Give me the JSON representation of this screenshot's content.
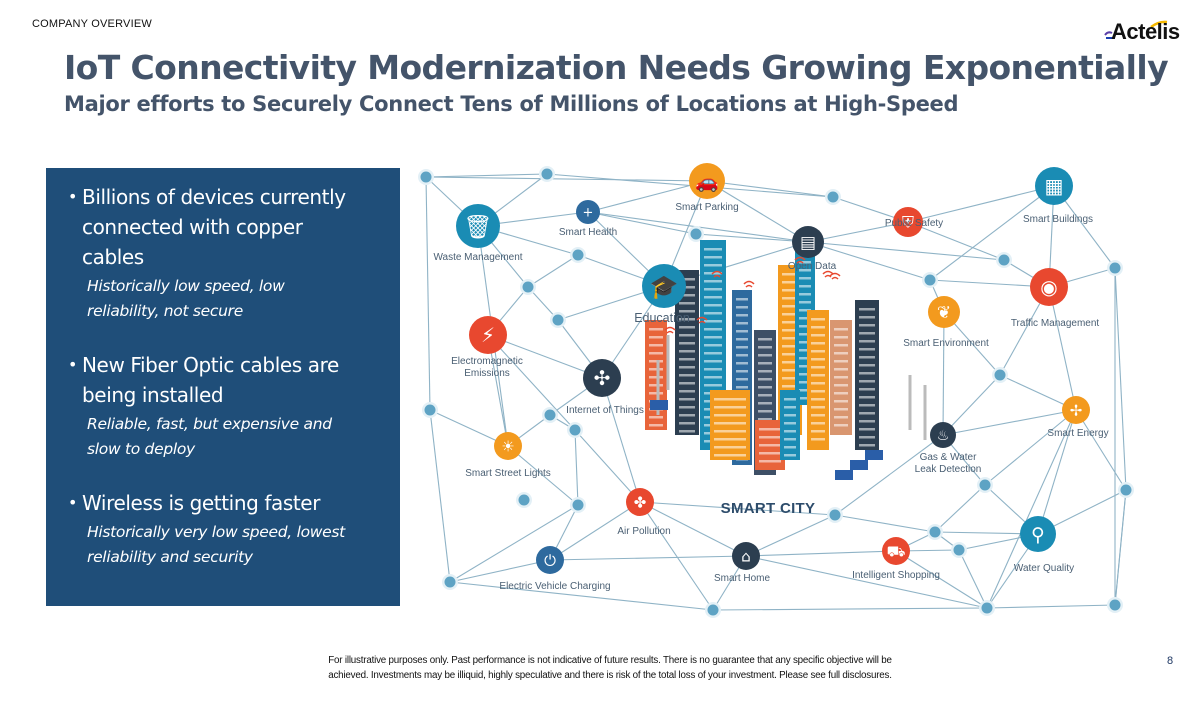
{
  "header": {
    "section_label": "COMPANY OVERVIEW",
    "logo_text": "Actelis",
    "title": "IoT Connectivity Modernization Needs Growing Exponentially",
    "subtitle": "Major efforts to Securely Connect Tens of Millions of Locations at High-Speed"
  },
  "panel": {
    "background": "#1f4e79",
    "bullets": [
      {
        "main_lines": [
          "Billions of devices currently",
          "connected with copper",
          "cables"
        ],
        "sub_lines": [
          "Historically low speed, low",
          "reliability, not secure"
        ]
      },
      {
        "main_lines": [
          "New Fiber Optic cables are",
          "being installed"
        ],
        "sub_lines": [
          "Reliable, fast, but expensive and",
          "slow to deploy"
        ]
      },
      {
        "main_lines": [
          "Wireless is getting faster"
        ],
        "sub_lines": [
          "Historically very low speed, lowest",
          "reliability and security"
        ]
      }
    ]
  },
  "diagram": {
    "center_label": "SMART CITY",
    "colors": {
      "teal": "#1a8cb4",
      "orange": "#f39a1e",
      "red": "#e8482f",
      "navy": "#2c3e50",
      "blue": "#2e6a9e",
      "line": "#8fb3c6",
      "hub": "#5ea3c4"
    },
    "nodes": [
      {
        "id": "waste",
        "label": "Waste Management",
        "icon": "trash-icon",
        "color": "teal"
      },
      {
        "id": "health",
        "label": "Smart Health",
        "icon": "medical-kit-icon",
        "color": "blue"
      },
      {
        "id": "parking",
        "label": "Smart Parking",
        "icon": "car-icon",
        "color": "orange"
      },
      {
        "id": "safety",
        "label": "Public Safety",
        "icon": "shield-icon",
        "color": "red"
      },
      {
        "id": "buildings",
        "label": "Smart Buildings",
        "icon": "building-icon",
        "color": "teal"
      },
      {
        "id": "opendata",
        "label": "Open Data",
        "icon": "folder-icon",
        "color": "navy"
      },
      {
        "id": "education",
        "label": "Education",
        "icon": "graduation-cap-icon",
        "color": "teal"
      },
      {
        "id": "environment",
        "label": "Smart Environment",
        "icon": "leaf-icon",
        "color": "orange"
      },
      {
        "id": "traffic",
        "label": "Traffic Management",
        "icon": "camera-icon",
        "color": "red"
      },
      {
        "id": "em",
        "label": "Electromagnetic Emissions",
        "icon": "power-tower-icon",
        "color": "red"
      },
      {
        "id": "iot",
        "label": "Internet of Things",
        "icon": "network-hub-icon",
        "color": "navy"
      },
      {
        "id": "energy",
        "label": "Smart Energy",
        "icon": "wind-turbine-icon",
        "color": "orange"
      },
      {
        "id": "gas",
        "label": "Gas & Water Leak Detection",
        "icon": "fire-drop-icon",
        "color": "navy"
      },
      {
        "id": "streetlights",
        "label": "Smart Street Lights",
        "icon": "lightbulb-icon",
        "color": "orange"
      },
      {
        "id": "air",
        "label": "Air Pollution",
        "icon": "fan-icon",
        "color": "red"
      },
      {
        "id": "home",
        "label": "Smart Home",
        "icon": "house-icon",
        "color": "navy"
      },
      {
        "id": "shopping",
        "label": "Intelligent Shopping",
        "icon": "shopping-cart-icon",
        "color": "red"
      },
      {
        "id": "water",
        "label": "Water Quality",
        "icon": "faucet-icon",
        "color": "teal"
      },
      {
        "id": "ev",
        "label": "Electric Vehicle Charging",
        "icon": "plug-icon",
        "color": "blue"
      }
    ]
  },
  "footer": {
    "disclaimer_line1": "For illustrative purposes only. Past performance is not indicative of future results.  There is no guarantee that any specific objective will be",
    "disclaimer_line2": "achieved.  Investments may be illiquid, highly speculative and there is risk of the total loss of your investment.  Please see full disclosures.",
    "page_number": "8"
  }
}
